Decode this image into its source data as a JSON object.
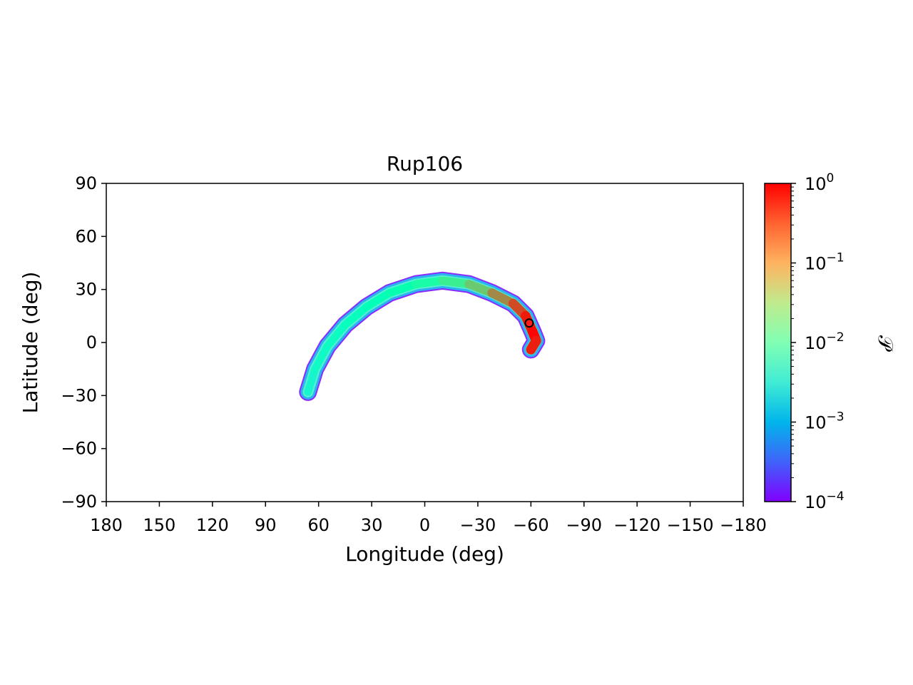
{
  "chart_data": {
    "type": "heatmap",
    "title": "Rup106",
    "xlabel": "Longitude (deg)",
    "ylabel": "Latitude (deg)",
    "xlim": [
      180,
      -180
    ],
    "ylim": [
      -90,
      90
    ],
    "x_inverted": true,
    "xticks": [
      {
        "value": 180,
        "label": "180"
      },
      {
        "value": 150,
        "label": "150"
      },
      {
        "value": 120,
        "label": "120"
      },
      {
        "value": 90,
        "label": "90"
      },
      {
        "value": 60,
        "label": "60"
      },
      {
        "value": 30,
        "label": "30"
      },
      {
        "value": 0,
        "label": "0"
      },
      {
        "value": -30,
        "label": "−30"
      },
      {
        "value": -60,
        "label": "−60"
      },
      {
        "value": -90,
        "label": "−90"
      },
      {
        "value": -120,
        "label": "−120"
      },
      {
        "value": -150,
        "label": "−150"
      },
      {
        "value": -180,
        "label": "−180"
      }
    ],
    "yticks": [
      {
        "value": 90,
        "label": "90"
      },
      {
        "value": 60,
        "label": "60"
      },
      {
        "value": 30,
        "label": "30"
      },
      {
        "value": 0,
        "label": "0"
      },
      {
        "value": -30,
        "label": "−30"
      },
      {
        "value": -60,
        "label": "−60"
      },
      {
        "value": -90,
        "label": "−90"
      }
    ],
    "grid": false,
    "colorbar": {
      "label": "𝒫",
      "scale": "log",
      "range": [
        0.0001,
        1
      ],
      "colormap": "rainbow",
      "ticks": [
        {
          "value": 1,
          "base": "10",
          "exp": "0"
        },
        {
          "value": 0.1,
          "base": "10",
          "exp": "−1"
        },
        {
          "value": 0.01,
          "base": "10",
          "exp": "−2"
        },
        {
          "value": 0.001,
          "base": "10",
          "exp": "−3"
        },
        {
          "value": 0.0001,
          "base": "10",
          "exp": "−4"
        }
      ]
    },
    "stream_path": [
      {
        "lon": 66,
        "lat": -28,
        "p": 0.004
      },
      {
        "lon": 62,
        "lat": -15,
        "p": 0.005
      },
      {
        "lon": 55,
        "lat": -2,
        "p": 0.006
      },
      {
        "lon": 45,
        "lat": 10,
        "p": 0.007
      },
      {
        "lon": 33,
        "lat": 20,
        "p": 0.008
      },
      {
        "lon": 20,
        "lat": 28,
        "p": 0.01
      },
      {
        "lon": 5,
        "lat": 33,
        "p": 0.013
      },
      {
        "lon": -10,
        "lat": 35,
        "p": 0.02
      },
      {
        "lon": -25,
        "lat": 33,
        "p": 0.04
      },
      {
        "lon": -38,
        "lat": 28,
        "p": 0.12
      },
      {
        "lon": -50,
        "lat": 22,
        "p": 0.3
      },
      {
        "lon": -57,
        "lat": 15,
        "p": 0.6
      },
      {
        "lon": -61,
        "lat": 6,
        "p": 0.9
      },
      {
        "lon": -63,
        "lat": 1,
        "p": 1.0
      },
      {
        "lon": -60,
        "lat": -4,
        "p": 0.5
      }
    ],
    "marker": {
      "lon": -59,
      "lat": 11
    }
  }
}
